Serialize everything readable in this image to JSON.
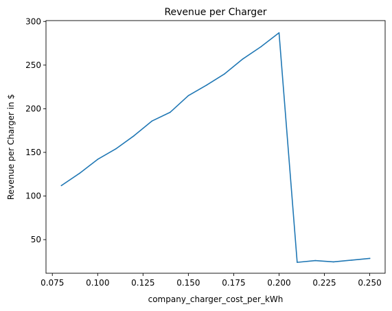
{
  "chart_data": {
    "type": "line",
    "title": "Revenue per Charger",
    "xlabel": "company_charger_cost_per_kWh",
    "ylabel": "Revenue per Charger in $",
    "xlim": [
      0.0715,
      0.2585
    ],
    "ylim": [
      11.5,
      301
    ],
    "x_ticks": [
      0.075,
      0.1,
      0.125,
      0.15,
      0.175,
      0.2,
      0.225,
      0.25
    ],
    "x_tick_labels": [
      "0.075",
      "0.100",
      "0.125",
      "0.150",
      "0.175",
      "0.200",
      "0.225",
      "0.250"
    ],
    "y_ticks": [
      50,
      100,
      150,
      200,
      250,
      300
    ],
    "y_tick_labels": [
      "50",
      "100",
      "150",
      "200",
      "250",
      "300"
    ],
    "grid": false,
    "line_color": "#1f77b4",
    "series": [
      {
        "x": [
          0.08,
          0.09,
          0.1,
          0.11,
          0.12,
          0.13,
          0.14,
          0.15,
          0.16,
          0.17,
          0.18,
          0.19,
          0.2,
          0.21,
          0.22,
          0.23,
          0.24,
          0.25
        ],
        "values": [
          112,
          126,
          142,
          154,
          169,
          186,
          196,
          215,
          227,
          240,
          257,
          271,
          287,
          24,
          26,
          24.5,
          26.5,
          28.5
        ]
      }
    ]
  }
}
